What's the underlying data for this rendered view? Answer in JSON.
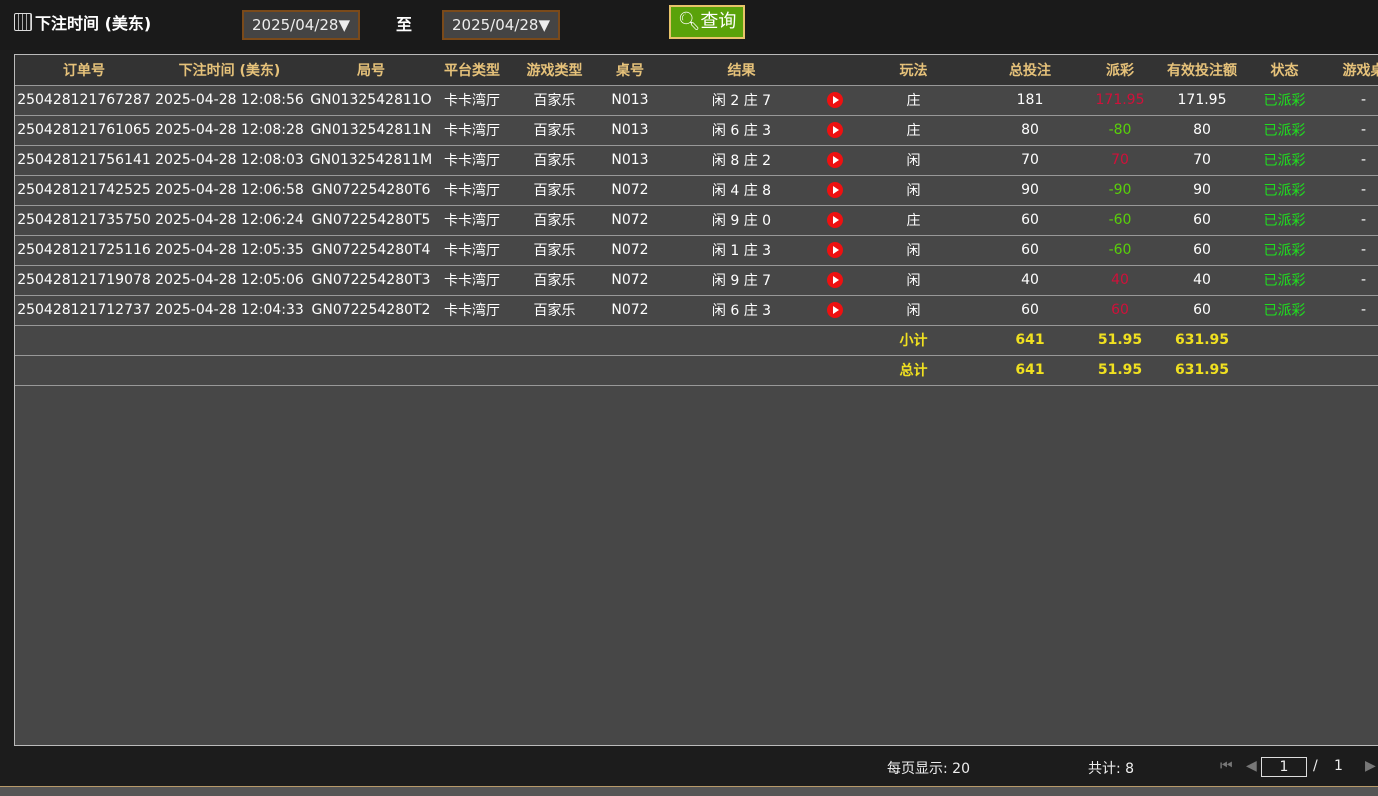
{
  "header": {
    "title": "下注时间 (美东)",
    "date_from": "2025/04/28▼",
    "to_label": "至",
    "date_to": "2025/04/28▼",
    "query_label": "查询"
  },
  "columns": [
    "订单号",
    "下注时间 (美东)",
    "局号",
    "平台类型",
    "游戏类型",
    "桌号",
    "结果",
    "",
    "玩法",
    "总投注",
    "派彩",
    "有效投注额",
    "状态",
    "游戏桌"
  ],
  "rows": [
    {
      "order": "250428121767287",
      "time": "2025-04-28 12:08:56",
      "round": "GN0132542811O",
      "platform": "卡卡湾厅",
      "game": "百家乐",
      "table": "N013",
      "result": "闲 2 庄 7",
      "bet_type": "庄",
      "total": "181",
      "payout": "171.95",
      "payout_color": "red",
      "valid": "171.95",
      "status": "已派彩",
      "extra": "-"
    },
    {
      "order": "250428121761065",
      "time": "2025-04-28 12:08:28",
      "round": "GN0132542811N",
      "platform": "卡卡湾厅",
      "game": "百家乐",
      "table": "N013",
      "result": "闲 6 庄 3",
      "bet_type": "庄",
      "total": "80",
      "payout": "-80",
      "payout_color": "green",
      "valid": "80",
      "status": "已派彩",
      "extra": "-"
    },
    {
      "order": "250428121756141",
      "time": "2025-04-28 12:08:03",
      "round": "GN0132542811M",
      "platform": "卡卡湾厅",
      "game": "百家乐",
      "table": "N013",
      "result": "闲 8 庄 2",
      "bet_type": "闲",
      "total": "70",
      "payout": "70",
      "payout_color": "red",
      "valid": "70",
      "status": "已派彩",
      "extra": "-"
    },
    {
      "order": "250428121742525",
      "time": "2025-04-28 12:06:58",
      "round": "GN072254280T6",
      "platform": "卡卡湾厅",
      "game": "百家乐",
      "table": "N072",
      "result": "闲 4 庄 8",
      "bet_type": "闲",
      "total": "90",
      "payout": "-90",
      "payout_color": "green",
      "valid": "90",
      "status": "已派彩",
      "extra": "-"
    },
    {
      "order": "250428121735750",
      "time": "2025-04-28 12:06:24",
      "round": "GN072254280T5",
      "platform": "卡卡湾厅",
      "game": "百家乐",
      "table": "N072",
      "result": "闲 9 庄 0",
      "bet_type": "庄",
      "total": "60",
      "payout": "-60",
      "payout_color": "green",
      "valid": "60",
      "status": "已派彩",
      "extra": "-"
    },
    {
      "order": "250428121725116",
      "time": "2025-04-28 12:05:35",
      "round": "GN072254280T4",
      "platform": "卡卡湾厅",
      "game": "百家乐",
      "table": "N072",
      "result": "闲 1 庄 3",
      "bet_type": "闲",
      "total": "60",
      "payout": "-60",
      "payout_color": "green",
      "valid": "60",
      "status": "已派彩",
      "extra": "-"
    },
    {
      "order": "250428121719078",
      "time": "2025-04-28 12:05:06",
      "round": "GN072254280T3",
      "platform": "卡卡湾厅",
      "game": "百家乐",
      "table": "N072",
      "result": "闲 9 庄 7",
      "bet_type": "闲",
      "total": "40",
      "payout": "40",
      "payout_color": "red",
      "valid": "40",
      "status": "已派彩",
      "extra": "-"
    },
    {
      "order": "250428121712737",
      "time": "2025-04-28 12:04:33",
      "round": "GN072254280T2",
      "platform": "卡卡湾厅",
      "game": "百家乐",
      "table": "N072",
      "result": "闲 6 庄 3",
      "bet_type": "闲",
      "total": "60",
      "payout": "60",
      "payout_color": "red",
      "valid": "60",
      "status": "已派彩",
      "extra": "-"
    }
  ],
  "subtotal": {
    "label": "小计",
    "total": "641",
    "payout": "51.95",
    "valid": "631.95"
  },
  "grand_total": {
    "label": "总计",
    "total": "641",
    "payout": "51.95",
    "valid": "631.95"
  },
  "footer": {
    "per_page": "每页显示: 20",
    "count": "共计: 8",
    "page": "1",
    "sep": "/",
    "pages": "1"
  },
  "colors": {
    "accent": "#5aa20a",
    "header_text": "#e6c27a",
    "win": "#d0103a",
    "loss": "#5ad00a",
    "status": "#1ee01e"
  }
}
